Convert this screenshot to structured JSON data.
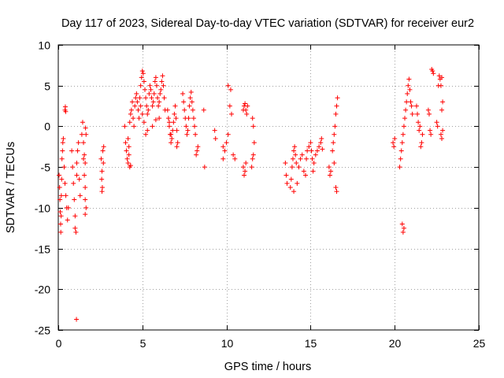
{
  "chart_data": {
    "type": "scatter",
    "title": "Day 117 of 2023, Sidereal Day-to-day VTEC variation (SDTVAR) for receiver eur2",
    "xlabel": "GPS time / hours",
    "ylabel": "SDTVAR / TECUs",
    "xlim": [
      0,
      25
    ],
    "ylim": [
      -25,
      10
    ],
    "xticks": [
      0,
      5,
      10,
      15,
      20,
      25
    ],
    "yticks": [
      -25,
      -20,
      -15,
      -10,
      -5,
      0,
      5,
      10
    ],
    "x_tick_labels": [
      "0",
      "5",
      "10",
      "15",
      "20",
      "25"
    ],
    "y_tick_labels": [
      "-25",
      "-20",
      "-15",
      "-10",
      "-5",
      "0",
      "5",
      "10"
    ],
    "grid": true,
    "marker": "+",
    "color": "#ff0000",
    "series": [
      {
        "name": "SDTVAR",
        "points": [
          [
            0.05,
            -6.0
          ],
          [
            0.08,
            -7.5
          ],
          [
            0.1,
            -9.0
          ],
          [
            0.12,
            -10.5
          ],
          [
            0.14,
            -12.0
          ],
          [
            0.15,
            -13.0
          ],
          [
            0.17,
            -11.0
          ],
          [
            0.18,
            -8.5
          ],
          [
            0.2,
            -6.5
          ],
          [
            0.22,
            -4.0
          ],
          [
            0.25,
            -3.0
          ],
          [
            0.27,
            -2.0
          ],
          [
            0.3,
            -1.5
          ],
          [
            0.35,
            -5.0
          ],
          [
            0.4,
            -7.0
          ],
          [
            0.45,
            -8.5
          ],
          [
            0.5,
            -10.0
          ],
          [
            0.55,
            -11.5
          ],
          [
            0.6,
            -10.0
          ],
          [
            0.4,
            2.0
          ],
          [
            0.42,
            2.4
          ],
          [
            0.44,
            1.8
          ],
          [
            0.8,
            -3.0
          ],
          [
            0.85,
            -5.0
          ],
          [
            0.9,
            -7.0
          ],
          [
            0.95,
            -9.0
          ],
          [
            1.0,
            -11.0
          ],
          [
            1.0,
            -12.5
          ],
          [
            1.05,
            -13.0
          ],
          [
            1.1,
            -6.0
          ],
          [
            1.1,
            -4.5
          ],
          [
            1.15,
            -3.0
          ],
          [
            1.2,
            -2.0
          ],
          [
            1.25,
            -6.5
          ],
          [
            1.3,
            -8.5
          ],
          [
            1.4,
            -1.0
          ],
          [
            1.45,
            0.5
          ],
          [
            1.5,
            -2.0
          ],
          [
            1.55,
            -3.5
          ],
          [
            1.5,
            -4.0
          ],
          [
            1.6,
            -4.5
          ],
          [
            1.55,
            -6.0
          ],
          [
            1.6,
            -7.5
          ],
          [
            1.6,
            -9.0
          ],
          [
            1.65,
            -10.0
          ],
          [
            1.6,
            -10.8
          ],
          [
            1.65,
            -1.0
          ],
          [
            1.62,
            -0.2
          ],
          [
            1.08,
            -23.7
          ],
          [
            2.55,
            -4.0
          ],
          [
            2.6,
            -5.5
          ],
          [
            2.58,
            -6.5
          ],
          [
            2.62,
            -7.5
          ],
          [
            2.6,
            -8.0
          ],
          [
            2.65,
            -3.0
          ],
          [
            2.7,
            -2.5
          ],
          [
            2.68,
            -4.5
          ],
          [
            3.95,
            0.0
          ],
          [
            4.0,
            -2.0
          ],
          [
            4.05,
            -3.0
          ],
          [
            4.1,
            -4.0
          ],
          [
            4.15,
            -4.5
          ],
          [
            4.2,
            -3.5
          ],
          [
            4.25,
            -5.0
          ],
          [
            4.3,
            -4.8
          ],
          [
            4.2,
            -2.5
          ],
          [
            4.15,
            -1.5
          ],
          [
            4.25,
            0.5
          ],
          [
            4.3,
            1.5
          ],
          [
            4.35,
            2.0
          ],
          [
            4.4,
            3.0
          ],
          [
            4.45,
            1.0
          ],
          [
            4.5,
            0.0
          ],
          [
            4.55,
            2.5
          ],
          [
            4.6,
            3.5
          ],
          [
            4.65,
            4.0
          ],
          [
            4.7,
            3.0
          ],
          [
            4.75,
            2.0
          ],
          [
            4.8,
            1.0
          ],
          [
            4.85,
            3.5
          ],
          [
            4.9,
            5.0
          ],
          [
            4.95,
            6.0
          ],
          [
            5.0,
            6.8
          ],
          [
            5.05,
            6.5
          ],
          [
            5.1,
            5.5
          ],
          [
            5.15,
            4.5
          ],
          [
            5.2,
            3.5
          ],
          [
            5.25,
            2.5
          ],
          [
            5.3,
            1.5
          ],
          [
            5.35,
            2.0
          ],
          [
            5.4,
            4.0
          ],
          [
            5.45,
            5.0
          ],
          [
            5.5,
            4.5
          ],
          [
            5.55,
            3.5
          ],
          [
            5.6,
            2.5
          ],
          [
            5.65,
            3.0
          ],
          [
            5.7,
            4.0
          ],
          [
            5.75,
            5.5
          ],
          [
            5.8,
            6.0
          ],
          [
            5.85,
            5.0
          ],
          [
            5.9,
            3.5
          ],
          [
            5.95,
            2.5
          ],
          [
            6.0,
            3.0
          ],
          [
            6.05,
            4.0
          ],
          [
            6.1,
            4.5
          ],
          [
            6.15,
            5.5
          ],
          [
            6.2,
            6.2
          ],
          [
            6.25,
            5.0
          ],
          [
            6.3,
            3.5
          ],
          [
            6.35,
            2.0
          ],
          [
            5.1,
            0.5
          ],
          [
            5.0,
            1.5
          ],
          [
            4.9,
            2.5
          ],
          [
            5.2,
            -1.0
          ],
          [
            5.3,
            -0.5
          ],
          [
            5.6,
            0.0
          ],
          [
            5.8,
            0.8
          ],
          [
            6.0,
            1.0
          ],
          [
            6.5,
            2.0
          ],
          [
            6.55,
            1.0
          ],
          [
            6.6,
            0.0
          ],
          [
            6.65,
            -1.0
          ],
          [
            6.7,
            -2.0
          ],
          [
            6.75,
            -1.5
          ],
          [
            6.8,
            -0.5
          ],
          [
            6.85,
            0.5
          ],
          [
            6.9,
            1.5
          ],
          [
            6.95,
            2.5
          ],
          [
            7.0,
            1.0
          ],
          [
            7.05,
            -0.5
          ],
          [
            7.1,
            -2.0
          ],
          [
            7.05,
            -2.5
          ],
          [
            6.7,
            -1.0
          ],
          [
            6.6,
            0.5
          ],
          [
            7.4,
            4.0
          ],
          [
            7.45,
            3.0
          ],
          [
            7.5,
            2.0
          ],
          [
            7.55,
            1.0
          ],
          [
            7.6,
            0.0
          ],
          [
            7.65,
            -1.0
          ],
          [
            7.7,
            -0.5
          ],
          [
            7.75,
            1.0
          ],
          [
            7.8,
            2.5
          ],
          [
            7.85,
            3.5
          ],
          [
            7.9,
            4.2
          ],
          [
            7.95,
            3.0
          ],
          [
            8.0,
            2.0
          ],
          [
            8.05,
            1.0
          ],
          [
            8.1,
            0.0
          ],
          [
            8.15,
            -1.0
          ],
          [
            8.2,
            -3.5
          ],
          [
            8.25,
            -3.0
          ],
          [
            8.3,
            -2.5
          ],
          [
            8.65,
            2.0
          ],
          [
            8.7,
            -5.0
          ],
          [
            9.3,
            -0.5
          ],
          [
            9.35,
            -1.5
          ],
          [
            9.8,
            -2.5
          ],
          [
            9.9,
            -3.0
          ],
          [
            10.0,
            -2.0
          ],
          [
            10.1,
            -1.0
          ],
          [
            10.2,
            2.5
          ],
          [
            10.1,
            5.0
          ],
          [
            10.25,
            4.5
          ],
          [
            10.3,
            1.5
          ],
          [
            10.4,
            -3.5
          ],
          [
            10.5,
            -4.0
          ],
          [
            9.8,
            -4.0
          ],
          [
            11.0,
            2.0
          ],
          [
            11.05,
            2.5
          ],
          [
            11.1,
            2.8
          ],
          [
            11.15,
            2.0
          ],
          [
            11.2,
            1.5
          ],
          [
            11.25,
            2.5
          ],
          [
            11.0,
            -5.0
          ],
          [
            11.05,
            -6.0
          ],
          [
            11.1,
            -5.5
          ],
          [
            11.15,
            -4.5
          ],
          [
            11.5,
            -5.0
          ],
          [
            11.55,
            -4.0
          ],
          [
            11.6,
            -3.5
          ],
          [
            11.65,
            -2.0
          ],
          [
            11.6,
            0.0
          ],
          [
            11.55,
            1.0
          ],
          [
            13.5,
            -4.5
          ],
          [
            13.55,
            -6.0
          ],
          [
            13.6,
            -7.0
          ],
          [
            13.8,
            -7.5
          ],
          [
            13.85,
            -6.5
          ],
          [
            13.9,
            -5.0
          ],
          [
            13.95,
            -4.0
          ],
          [
            14.0,
            -3.0
          ],
          [
            14.05,
            -2.5
          ],
          [
            14.1,
            -3.5
          ],
          [
            14.15,
            -4.5
          ],
          [
            14.3,
            -5.0
          ],
          [
            14.4,
            -4.0
          ],
          [
            14.5,
            -3.5
          ],
          [
            14.6,
            -5.5
          ],
          [
            14.7,
            -6.0
          ],
          [
            14.75,
            -4.0
          ],
          [
            14.8,
            -3.0
          ],
          [
            14.9,
            -2.5
          ],
          [
            15.0,
            -2.0
          ],
          [
            15.05,
            -3.0
          ],
          [
            15.1,
            -4.0
          ],
          [
            15.15,
            -5.5
          ],
          [
            15.2,
            -4.5
          ],
          [
            15.3,
            -3.5
          ],
          [
            15.4,
            -3.0
          ],
          [
            15.5,
            -2.5
          ],
          [
            15.6,
            -2.0
          ],
          [
            15.65,
            -1.5
          ],
          [
            15.7,
            -2.8
          ],
          [
            14.2,
            -7.0
          ],
          [
            14.0,
            -8.0
          ],
          [
            16.1,
            -5.0
          ],
          [
            16.15,
            -6.0
          ],
          [
            16.2,
            -5.5
          ],
          [
            16.3,
            -3.0
          ],
          [
            16.35,
            -2.0
          ],
          [
            16.4,
            -1.0
          ],
          [
            16.45,
            0.0
          ],
          [
            16.5,
            1.5
          ],
          [
            16.55,
            2.5
          ],
          [
            16.6,
            3.5
          ],
          [
            16.5,
            -7.5
          ],
          [
            16.55,
            -8.0
          ],
          [
            16.4,
            -4.5
          ],
          [
            19.9,
            -2.0
          ],
          [
            19.95,
            -2.5
          ],
          [
            20.0,
            -1.5
          ],
          [
            20.3,
            -5.0
          ],
          [
            20.35,
            -4.0
          ],
          [
            20.4,
            -3.0
          ],
          [
            20.45,
            -2.0
          ],
          [
            20.5,
            -1.0
          ],
          [
            20.55,
            0.0
          ],
          [
            20.6,
            1.0
          ],
          [
            20.65,
            2.0
          ],
          [
            20.7,
            3.0
          ],
          [
            20.75,
            4.0
          ],
          [
            20.8,
            5.0
          ],
          [
            20.85,
            5.8
          ],
          [
            20.9,
            4.5
          ],
          [
            20.95,
            3.0
          ],
          [
            21.0,
            2.5
          ],
          [
            21.05,
            1.5
          ],
          [
            20.45,
            -12.0
          ],
          [
            20.5,
            -13.0
          ],
          [
            20.55,
            -12.5
          ],
          [
            21.3,
            2.5
          ],
          [
            21.35,
            1.5
          ],
          [
            21.4,
            0.5
          ],
          [
            21.45,
            -0.5
          ],
          [
            21.5,
            0.0
          ],
          [
            21.55,
            -2.5
          ],
          [
            21.6,
            -2.0
          ],
          [
            21.65,
            -1.0
          ],
          [
            22.0,
            2.0
          ],
          [
            22.05,
            1.5
          ],
          [
            22.1,
            -0.5
          ],
          [
            22.15,
            -1.0
          ],
          [
            22.2,
            7.0
          ],
          [
            22.25,
            6.8
          ],
          [
            22.3,
            6.5
          ],
          [
            22.5,
            0.5
          ],
          [
            22.55,
            0.0
          ],
          [
            22.6,
            5.0
          ],
          [
            22.65,
            6.2
          ],
          [
            22.7,
            5.8
          ],
          [
            22.75,
            5.0
          ],
          [
            22.8,
            6.0
          ],
          [
            22.85,
            3.0
          ],
          [
            22.8,
            2.0
          ],
          [
            22.75,
            -1.0
          ],
          [
            22.8,
            -1.5
          ],
          [
            22.85,
            -0.5
          ]
        ]
      }
    ]
  }
}
